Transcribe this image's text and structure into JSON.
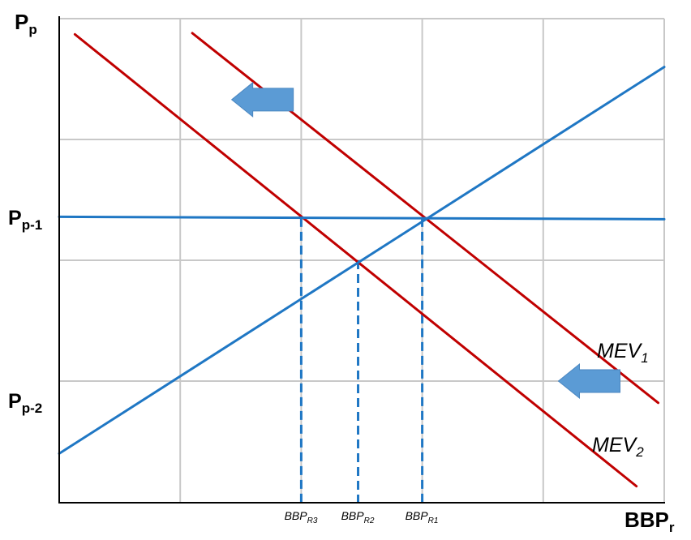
{
  "chart_data": {
    "type": "line",
    "xlim": [
      0,
      5
    ],
    "ylim": [
      0,
      4
    ],
    "grid": true,
    "y_axis": {
      "title": "P",
      "title_sub": "p",
      "ticks": [
        {
          "label": "P",
          "sub": "p-1",
          "value": 2.35
        },
        {
          "label": "P",
          "sub": "p-2",
          "value": 0.75
        }
      ]
    },
    "x_axis": {
      "title": "BBP",
      "title_sub": "r",
      "ticks": [
        {
          "label": "BBP",
          "sub": "R3",
          "value": 2.0
        },
        {
          "label": "BBP",
          "sub": "R2",
          "value": 2.47
        },
        {
          "label": "BBP",
          "sub": "R1",
          "value": 3.0
        }
      ]
    },
    "series": [
      {
        "name": "MEV",
        "sub": "1",
        "color": "#c00000",
        "points": [
          [
            1.1,
            3.88
          ],
          [
            4.95,
            0.82
          ]
        ]
      },
      {
        "name": "MEV",
        "sub": "2",
        "color": "#c00000",
        "points": [
          [
            0.13,
            3.87
          ],
          [
            4.77,
            0.13
          ]
        ]
      },
      {
        "color": "#1f77c4",
        "points": [
          [
            0,
            0.4
          ],
          [
            5,
            3.6
          ]
        ]
      },
      {
        "color": "#1f77c4",
        "points": [
          [
            0,
            2.36
          ],
          [
            5,
            2.34
          ]
        ]
      }
    ],
    "drop_lines": [
      {
        "x": 2.0,
        "y": 2.35
      },
      {
        "x": 2.47,
        "y": 2.0
      },
      {
        "x": 3.0,
        "y": 2.35
      }
    ],
    "arrows": [
      {
        "direction": "left",
        "color": "#5b9bd5",
        "x": 1.68,
        "y": 3.33
      },
      {
        "direction": "left",
        "color": "#5b9bd5",
        "x": 4.38,
        "y": 1.0
      }
    ]
  }
}
